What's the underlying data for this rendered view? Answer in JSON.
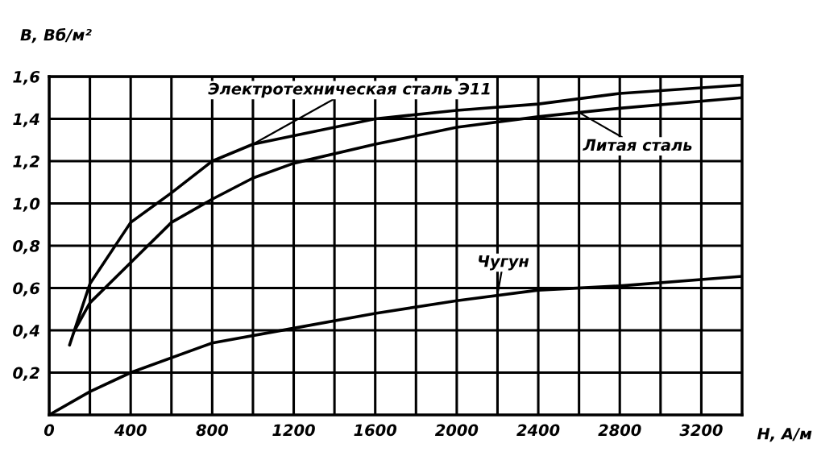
{
  "chart_data": {
    "type": "line",
    "xlabel": "H, А/м",
    "ylabel": "B, Вб/м²",
    "xlim": [
      0,
      3400
    ],
    "ylim": [
      0,
      1.6
    ],
    "xticks": [
      0,
      {
        "value": 200,
        "label": null
      },
      400,
      {
        "value": 600,
        "label": null
      },
      800,
      {
        "value": 1000,
        "label": null
      },
      1200,
      {
        "value": 1400,
        "label": null
      },
      1600,
      {
        "value": 1800,
        "label": null
      },
      2000,
      {
        "value": 2200,
        "label": null
      },
      2400,
      {
        "value": 2600,
        "label": null
      },
      2800,
      {
        "value": 3000,
        "label": null
      },
      3200
    ],
    "yticks": [
      {
        "value": 0.2,
        "label": "0,2"
      },
      {
        "value": 0.4,
        "label": "0,4"
      },
      {
        "value": 0.6,
        "label": "0,6"
      },
      {
        "value": 0.8,
        "label": "0,8"
      },
      {
        "value": 1.0,
        "label": "1,0"
      },
      {
        "value": 1.2,
        "label": "1,2"
      },
      {
        "value": 1.4,
        "label": "1,4"
      },
      {
        "value": 1.6,
        "label": "1,6"
      }
    ],
    "grid": true,
    "marker": "none",
    "line_style": "solid",
    "series": [
      {
        "color": "#000000",
        "x": [
          100,
          200,
          400,
          600,
          800,
          1000,
          1200,
          1600,
          2000,
          2400,
          2800,
          3400
        ],
        "values": [
          0.33,
          0.62,
          0.91,
          1.05,
          1.2,
          1.28,
          1.32,
          1.4,
          1.44,
          1.47,
          1.52,
          1.56
        ]
      },
      {
        "color": "#000000",
        "x": [
          125,
          200,
          400,
          600,
          800,
          1000,
          1200,
          1600,
          2000,
          2400,
          2800,
          3400
        ],
        "values": [
          0.4,
          0.53,
          0.72,
          0.91,
          1.02,
          1.12,
          1.19,
          1.28,
          1.36,
          1.41,
          1.45,
          1.5
        ]
      },
      {
        "color": "#000000",
        "x": [
          0,
          200,
          400,
          800,
          1200,
          1600,
          2000,
          2400,
          2800,
          3400
        ],
        "values": [
          0,
          0.11,
          0.2,
          0.34,
          0.41,
          0.48,
          0.54,
          0.59,
          0.61,
          0.655
        ]
      }
    ],
    "annotations": [
      {
        "text": "Электротехническая сталь Э11",
        "x": 1000,
        "y": 1.28
      },
      {
        "text": "Литая сталь",
        "x": 2600,
        "y": 1.43
      },
      {
        "text": "Чугун",
        "x": 2200,
        "y": 0.57
      }
    ]
  }
}
